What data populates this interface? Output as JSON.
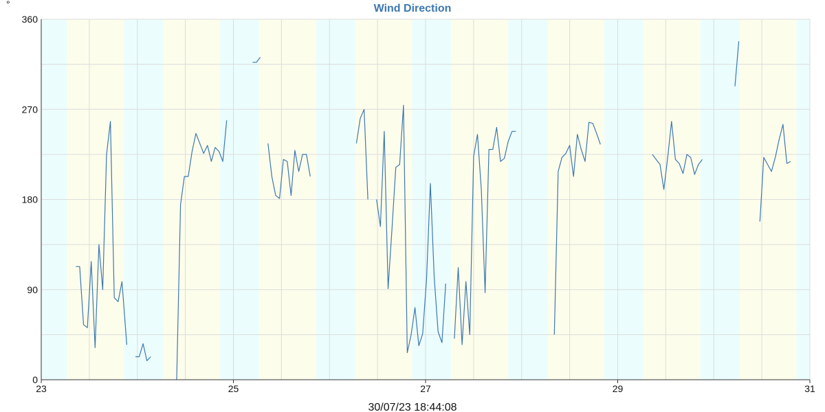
{
  "chart_data": {
    "type": "line",
    "title": "Wind Direction",
    "ylabel": "°",
    "xlabel": "",
    "xlim": [
      23,
      31
    ],
    "ylim": [
      0,
      360
    ],
    "x_ticks": [
      "23",
      "25",
      "27",
      "29",
      "31"
    ],
    "x_tick_values": [
      23,
      25,
      27,
      29,
      31
    ],
    "y_ticks": [
      "0",
      "90",
      "180",
      "270",
      "360"
    ],
    "y_tick_values": [
      0,
      90,
      180,
      270,
      360
    ],
    "grid": true,
    "footer_timestamp": "30/07/23 18:44:08",
    "colors": {
      "line": "#3b78b0",
      "title": "#3b78b0",
      "day_band": "#fdfdec",
      "night_band": "#ecfdfd",
      "grid": "#dcdcdc"
    },
    "bands": [
      {
        "kind": "night",
        "start": 23.0,
        "end": 23.27
      },
      {
        "kind": "day",
        "start": 23.27,
        "end": 23.86
      },
      {
        "kind": "night",
        "start": 23.86,
        "end": 24.27
      },
      {
        "kind": "day",
        "start": 24.27,
        "end": 24.86
      },
      {
        "kind": "night",
        "start": 24.86,
        "end": 25.27
      },
      {
        "kind": "day",
        "start": 25.27,
        "end": 25.86
      },
      {
        "kind": "night",
        "start": 25.86,
        "end": 26.27
      },
      {
        "kind": "day",
        "start": 26.27,
        "end": 26.86
      },
      {
        "kind": "night",
        "start": 26.86,
        "end": 27.27
      },
      {
        "kind": "day",
        "start": 27.27,
        "end": 27.86
      },
      {
        "kind": "night",
        "start": 27.86,
        "end": 28.27
      },
      {
        "kind": "day",
        "start": 28.27,
        "end": 28.86
      },
      {
        "kind": "night",
        "start": 28.86,
        "end": 29.27
      },
      {
        "kind": "day",
        "start": 29.27,
        "end": 29.86
      },
      {
        "kind": "night",
        "start": 29.86,
        "end": 30.27
      },
      {
        "kind": "day",
        "start": 30.27,
        "end": 30.86
      },
      {
        "kind": "night",
        "start": 30.86,
        "end": 31.0
      }
    ],
    "series": [
      {
        "segments": [
          [
            [
              23.36,
              113
            ],
            [
              23.4,
              113
            ],
            [
              23.44,
              55
            ],
            [
              23.48,
              52
            ],
            [
              23.52,
              118
            ],
            [
              23.56,
              32
            ],
            [
              23.6,
              135
            ],
            [
              23.64,
              90
            ],
            [
              23.68,
              225
            ],
            [
              23.72,
              258
            ],
            [
              23.76,
              82
            ],
            [
              23.8,
              78
            ],
            [
              23.84,
              98
            ],
            [
              23.89,
              35
            ]
          ],
          [
            [
              23.98,
              23
            ],
            [
              24.02,
              23
            ],
            [
              24.06,
              36
            ],
            [
              24.1,
              19
            ],
            [
              24.14,
              23
            ]
          ],
          [
            [
              24.41,
              0
            ],
            [
              24.45,
              175
            ],
            [
              24.49,
              203
            ],
            [
              24.53,
              203
            ],
            [
              24.57,
              228
            ],
            [
              24.61,
              246
            ],
            [
              24.65,
              236
            ],
            [
              24.69,
              226
            ],
            [
              24.73,
              234
            ],
            [
              24.77,
              218
            ],
            [
              24.81,
              232
            ],
            [
              24.85,
              228
            ],
            [
              24.89,
              218
            ],
            [
              24.93,
              259
            ]
          ],
          [
            [
              25.2,
              317
            ],
            [
              25.24,
              317
            ],
            [
              25.28,
              322
            ]
          ],
          [
            [
              25.36,
              236
            ],
            [
              25.4,
              203
            ],
            [
              25.44,
              184
            ],
            [
              25.48,
              181
            ],
            [
              25.52,
              220
            ],
            [
              25.56,
              218
            ],
            [
              25.6,
              184
            ],
            [
              25.64,
              229
            ],
            [
              25.68,
              208
            ],
            [
              25.72,
              225
            ],
            [
              25.76,
              225
            ],
            [
              25.8,
              203
            ]
          ],
          [
            [
              26.28,
              236
            ],
            [
              26.32,
              261
            ],
            [
              26.36,
              270
            ],
            [
              26.4,
              180
            ]
          ],
          [
            [
              26.49,
              180
            ],
            [
              26.53,
              153
            ],
            [
              26.57,
              248
            ],
            [
              26.61,
              91
            ],
            [
              26.65,
              150
            ],
            [
              26.69,
              212
            ],
            [
              26.73,
              215
            ],
            [
              26.77,
              274
            ],
            [
              26.81,
              27
            ],
            [
              26.85,
              45
            ],
            [
              26.89,
              72
            ],
            [
              26.93,
              34
            ],
            [
              26.97,
              46
            ],
            [
              27.01,
              100
            ],
            [
              27.05,
              196
            ],
            [
              27.09,
              102
            ],
            [
              27.13,
              48
            ],
            [
              27.17,
              37
            ],
            [
              27.21,
              96
            ]
          ],
          [
            [
              27.3,
              41
            ],
            [
              27.34,
              112
            ],
            [
              27.38,
              35
            ],
            [
              27.42,
              98
            ],
            [
              27.46,
              45
            ],
            [
              27.5,
              223
            ],
            [
              27.54,
              245
            ],
            [
              27.58,
              190
            ],
            [
              27.62,
              87
            ],
            [
              27.66,
              230
            ],
            [
              27.7,
              230
            ],
            [
              27.74,
              252
            ],
            [
              27.78,
              218
            ],
            [
              27.82,
              221
            ],
            [
              27.86,
              238
            ],
            [
              27.9,
              248
            ],
            [
              27.94,
              248
            ]
          ],
          [
            [
              28.34,
              45
            ],
            [
              28.38,
              208
            ],
            [
              28.42,
              222
            ],
            [
              28.46,
              226
            ],
            [
              28.5,
              234
            ],
            [
              28.54,
              203
            ],
            [
              28.58,
              245
            ],
            [
              28.62,
              230
            ],
            [
              28.66,
              218
            ],
            [
              28.7,
              257
            ],
            [
              28.74,
              256
            ],
            [
              28.78,
              246
            ],
            [
              28.82,
              235
            ]
          ],
          [
            [
              29.36,
              225
            ],
            [
              29.4,
              220
            ],
            [
              29.44,
              215
            ],
            [
              29.48,
              190
            ],
            [
              29.52,
              222
            ],
            [
              29.56,
              258
            ],
            [
              29.6,
              220
            ],
            [
              29.64,
              216
            ],
            [
              29.68,
              206
            ],
            [
              29.72,
              225
            ],
            [
              29.76,
              222
            ],
            [
              29.8,
              205
            ],
            [
              29.84,
              215
            ],
            [
              29.88,
              220
            ]
          ],
          [
            [
              30.22,
              293
            ],
            [
              30.26,
              338
            ]
          ],
          [
            [
              30.48,
              158
            ],
            [
              30.52,
              222
            ],
            [
              30.56,
              215
            ],
            [
              30.6,
              208
            ],
            [
              30.64,
              222
            ],
            [
              30.68,
              240
            ],
            [
              30.72,
              255
            ],
            [
              30.76,
              216
            ],
            [
              30.8,
              218
            ]
          ]
        ]
      }
    ]
  }
}
